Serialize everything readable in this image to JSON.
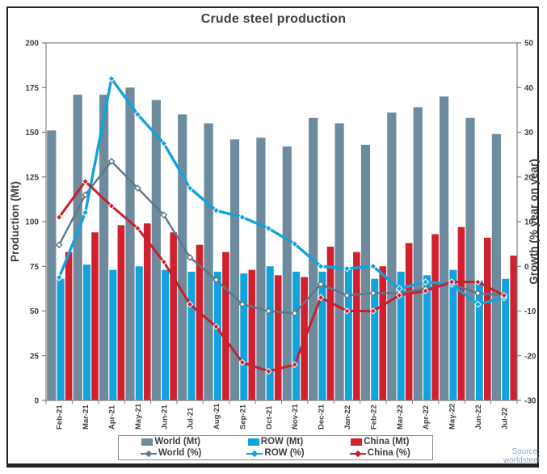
{
  "title": "Crude steel production",
  "source": "Source: worldsteel",
  "colors": {
    "world_bar": "#6e8b9d",
    "row_bar": "#12a3dc",
    "china_bar": "#d02030",
    "world_line": "#5a7888",
    "row_line": "#12a3dc",
    "china_line": "#c9202c",
    "axis": "#7f7f7f",
    "tick_text": "#3d4045"
  },
  "chart_data": {
    "type": "combo-bar-line",
    "title": "Crude steel production",
    "categories": [
      "Feb-21",
      "Mar-21",
      "Apr-21",
      "May-21",
      "Jun-21",
      "Jul-21",
      "Aug-21",
      "Sep-21",
      "Oct-21",
      "Nov-21",
      "Dec-21",
      "Jan-22",
      "Feb-22",
      "Mar-22",
      "Apr-22",
      "May-22",
      "Jun-22",
      "Jul-22"
    ],
    "bar_series": [
      {
        "name": "World (Mt)",
        "axis": "left",
        "color": "#6e8b9d",
        "values": [
          151,
          171,
          171,
          175,
          168,
          160,
          155,
          146,
          147,
          142,
          158,
          155,
          143,
          161,
          164,
          170,
          158,
          149
        ]
      },
      {
        "name": "ROW (Mt)",
        "axis": "left",
        "color": "#12a3dc",
        "values": [
          68,
          76,
          73,
          75,
          73,
          72,
          72,
          71,
          75,
          72,
          72,
          73,
          68,
          72,
          70,
          73,
          67,
          68
        ]
      },
      {
        "name": "China (Mt)",
        "axis": "left",
        "color": "#d02030",
        "values": [
          83,
          94,
          98,
          99,
          94,
          87,
          83,
          73,
          70,
          69,
          86,
          83,
          75,
          88,
          93,
          97,
          91,
          81
        ]
      }
    ],
    "line_series": [
      {
        "name": "World (%)",
        "axis": "right",
        "color": "#5a7888",
        "marker_fill": "#ffffff",
        "values": [
          4.8,
          16,
          23.5,
          17.5,
          11.5,
          2,
          -3,
          -8.5,
          -10,
          -10.5,
          -4,
          -6.5,
          -6,
          -6,
          -5,
          -4,
          -6,
          -6.5
        ]
      },
      {
        "name": "ROW (%)",
        "axis": "right",
        "color": "#12a3dc",
        "marker_fill": "#12a3dc",
        "values": [
          -2.5,
          12,
          42,
          34,
          27.5,
          17.5,
          12.5,
          11,
          8.5,
          5,
          0,
          -0.5,
          0,
          -5,
          -3.5,
          -4,
          -8.5,
          -7
        ]
      },
      {
        "name": "China (%)",
        "axis": "right",
        "color": "#c9202c",
        "marker_fill": "#c9202c",
        "values": [
          11,
          19,
          13.5,
          8.5,
          1,
          -8.5,
          -13.5,
          -21.5,
          -23.5,
          -22,
          -7,
          -10,
          -10,
          -6.5,
          -5.5,
          -3.5,
          -3.5,
          -6.5
        ]
      }
    ],
    "left_axis": {
      "label": "Production (Mt)",
      "min": 0,
      "max": 200,
      "ticks": [
        0,
        25,
        50,
        75,
        100,
        125,
        150,
        175,
        200
      ]
    },
    "right_axis": {
      "label": "Growth (% year on year)",
      "min": -30,
      "max": 50,
      "ticks": [
        -30,
        -20,
        -10,
        0,
        10,
        20,
        30,
        40,
        50
      ]
    },
    "grid": false,
    "legend_position": "bottom"
  }
}
